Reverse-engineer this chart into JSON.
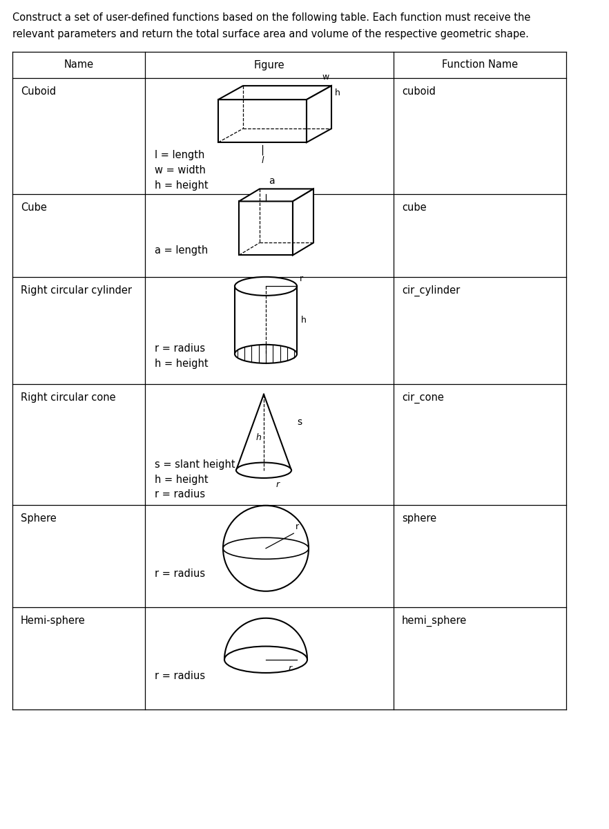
{
  "title_line1": "Construct a set of user-defined functions based on the following table. Each function must receive the",
  "title_line2": "relevant parameters and return the total surface area and volume of the respective geometric shape.",
  "col_names": [
    "Name",
    "Figure",
    "Function Name"
  ],
  "rows": [
    {
      "name": "Cuboid",
      "func": "cuboid",
      "params": [
        "l = length",
        "w = width",
        "h = height"
      ]
    },
    {
      "name": "Cube",
      "func": "cube",
      "params": [
        "a = length"
      ]
    },
    {
      "name": "Right circular cylinder",
      "func": "cir_cylinder",
      "params": [
        "r = radius",
        "h = height"
      ]
    },
    {
      "name": "Right circular cone",
      "func": "cir_cone",
      "params": [
        "s = slant height",
        "h = height",
        "r = radius"
      ]
    },
    {
      "name": "Sphere",
      "func": "sphere",
      "params": [
        "r = radius"
      ]
    },
    {
      "name": "Hemi-sphere",
      "func": "hemi_sphere",
      "params": [
        "r = radius"
      ]
    }
  ],
  "bg_color": "#ffffff",
  "text_color": "#000000",
  "line_color": "#000000",
  "title_fontsize": 10.5,
  "cell_fontsize": 10.5,
  "shape_label_fontsize": 9
}
